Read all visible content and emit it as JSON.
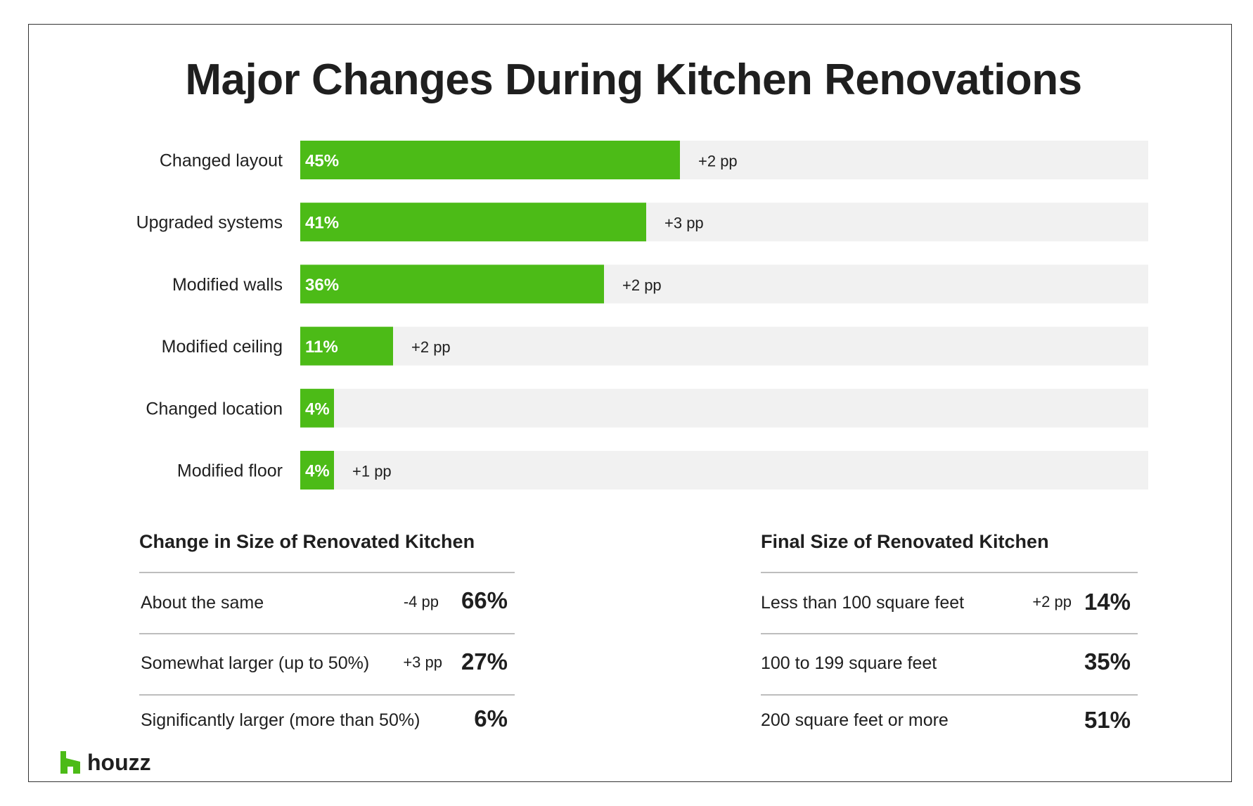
{
  "chart_data": {
    "type": "bar",
    "orientation": "horizontal",
    "title": "Major Changes During Kitchen Renovations",
    "categories": [
      "Changed layout",
      "Upgraded systems",
      "Modified walls",
      "Modified ceiling",
      "Changed location",
      "Modified floor"
    ],
    "values": [
      45,
      41,
      36,
      11,
      4,
      4
    ],
    "value_labels": [
      "45%",
      "41%",
      "36%",
      "11%",
      "4%",
      "4%"
    ],
    "change_labels": [
      "+2 pp",
      "+3 pp",
      "+2 pp",
      "+2 pp",
      "",
      "+1 pp"
    ],
    "xlim": [
      0,
      100
    ],
    "grid": false,
    "legend": "none"
  },
  "colors": {
    "bar": "#4cbb17",
    "track": "#f1f1f1",
    "text": "#1f1f1f",
    "rule": "#bdbdbd"
  },
  "tables": [
    {
      "title": "Change in Size of Renovated Kitchen",
      "rows": [
        {
          "label": "About the same",
          "change": "-4 pp",
          "value": "66%"
        },
        {
          "label": "Somewhat larger (up to 50%)",
          "change": "+3 pp",
          "value": "27%"
        },
        {
          "label": "Significantly larger (more than 50%)",
          "change": "",
          "value": "6%"
        }
      ]
    },
    {
      "title": "Final Size of Renovated Kitchen",
      "rows": [
        {
          "label": "Less than 100 square feet",
          "change": "+2 pp",
          "value": "14%"
        },
        {
          "label": "100 to 199 square feet",
          "change": "",
          "value": "35%"
        },
        {
          "label": "200 square feet or more",
          "change": "",
          "value": "51%"
        }
      ]
    }
  ],
  "logo": {
    "text": "houzz",
    "icon": "houzz-logo-icon"
  }
}
